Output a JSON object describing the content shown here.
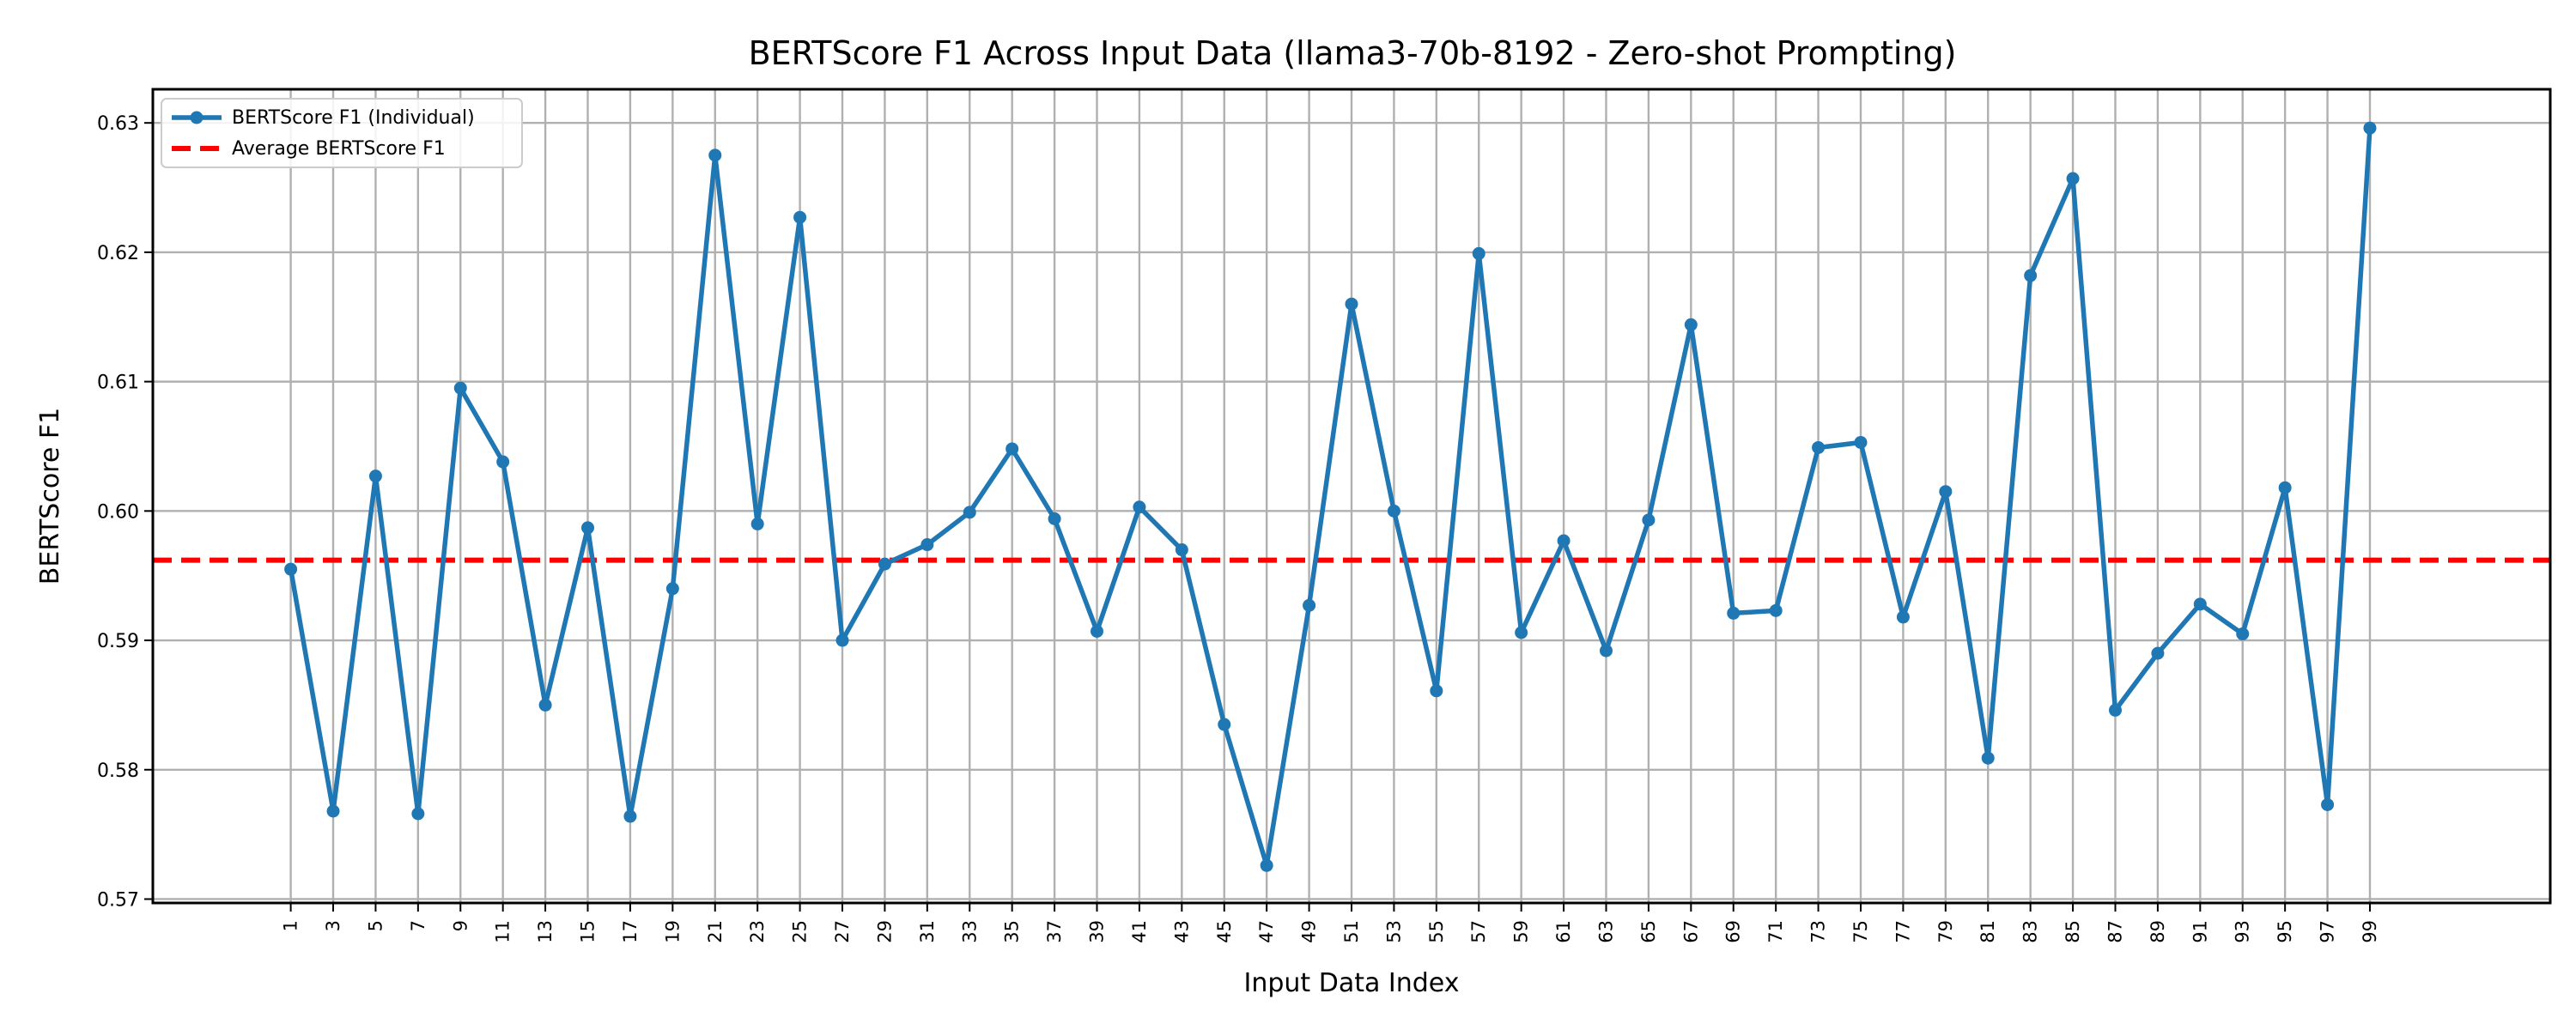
{
  "chart_data": {
    "type": "line",
    "title": "BERTScore F1 Across Input Data (llama3-70b-8192 - Zero-shot Prompting)",
    "xlabel": "Input Data Index",
    "ylabel": "BERTScore F1",
    "x": [
      1,
      3,
      5,
      7,
      9,
      11,
      13,
      15,
      17,
      19,
      21,
      23,
      25,
      27,
      29,
      31,
      33,
      35,
      37,
      39,
      41,
      43,
      45,
      47,
      49,
      51,
      53,
      55,
      57,
      59,
      61,
      63,
      65,
      67,
      69,
      71,
      73,
      75,
      77,
      79,
      81,
      83,
      85,
      87,
      89,
      91,
      93,
      95,
      97,
      99
    ],
    "x_tick_labels": [
      "1",
      "3",
      "5",
      "7",
      "9",
      "11",
      "13",
      "15",
      "17",
      "19",
      "21",
      "23",
      "25",
      "27",
      "29",
      "31",
      "33",
      "35",
      "37",
      "39",
      "41",
      "43",
      "45",
      "47",
      "49",
      "51",
      "53",
      "55",
      "57",
      "59",
      "61",
      "63",
      "65",
      "67",
      "69",
      "71",
      "73",
      "75",
      "77",
      "79",
      "81",
      "83",
      "85",
      "87",
      "89",
      "91",
      "93",
      "95",
      "97",
      "99"
    ],
    "y_ticks": [
      0.57,
      0.58,
      0.59,
      0.6,
      0.61,
      0.62,
      0.63
    ],
    "y_tick_labels": [
      "0.57",
      "0.58",
      "0.59",
      "0.60",
      "0.61",
      "0.62",
      "0.63"
    ],
    "xlim": [
      -5.5,
      107.5
    ],
    "ylim": [
      0.5697,
      0.6326
    ],
    "grid": true,
    "legend_position": "top-left",
    "series": [
      {
        "name": "BERTScore F1 (Individual)",
        "color": "#1f77b4",
        "style": "line-with-markers",
        "values": [
          0.5955,
          0.5768,
          0.6027,
          0.5766,
          0.6095,
          0.6038,
          0.585,
          0.5987,
          0.5764,
          0.594,
          0.6275,
          0.599,
          0.6227,
          0.59,
          0.5959,
          0.5974,
          0.5999,
          0.6048,
          0.5994,
          0.5907,
          0.6003,
          0.597,
          0.5835,
          0.5726,
          0.5927,
          0.616,
          0.6,
          0.5861,
          0.6199,
          0.5906,
          0.5977,
          0.5892,
          0.5993,
          0.6144,
          0.5921,
          0.5923,
          0.6049,
          0.6053,
          0.5918,
          0.6015,
          0.5809,
          0.6182,
          0.6257,
          0.5846,
          0.589,
          0.5928,
          0.5905,
          0.6018,
          0.5773,
          0.6296
        ]
      },
      {
        "name": "Average BERTScore F1",
        "color": "#ff0000",
        "style": "dashed-horizontal",
        "value": 0.5962
      }
    ]
  }
}
